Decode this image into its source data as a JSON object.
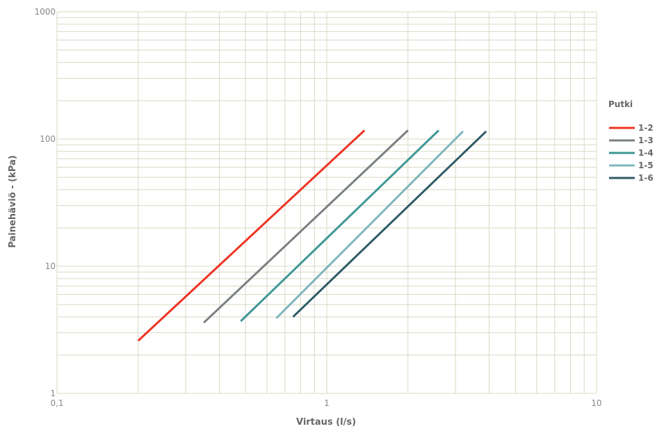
{
  "chart_data": {
    "type": "line",
    "title": "",
    "xlabel": "Virtaus (l/s)",
    "ylabel": "Painehäviö  - (kPa)",
    "x_scale": "log",
    "y_scale": "log",
    "xlim": [
      0.1,
      10
    ],
    "ylim": [
      1,
      1000
    ],
    "x_tick_labels": [
      "0,1",
      "1",
      "10"
    ],
    "y_tick_labels": [
      "1",
      "10",
      "100",
      "1000"
    ],
    "grid": true,
    "grid_color": "#d8d8c4",
    "legend": {
      "title": "Putki",
      "position": "right"
    },
    "series": [
      {
        "name": "1-2",
        "color": "#ee3322",
        "points": [
          [
            0.2,
            2.6
          ],
          [
            1.38,
            117
          ]
        ]
      },
      {
        "name": "1-3",
        "color": "#7a7f80",
        "points": [
          [
            0.35,
            3.6
          ],
          [
            2.0,
            117
          ]
        ]
      },
      {
        "name": "1-4",
        "color": "#3f9795",
        "points": [
          [
            0.48,
            3.7
          ],
          [
            2.6,
            117
          ]
        ]
      },
      {
        "name": "1-5",
        "color": "#7fb6bc",
        "points": [
          [
            0.65,
            3.9
          ],
          [
            3.2,
            115
          ]
        ]
      },
      {
        "name": "1-6",
        "color": "#2f5a66",
        "points": [
          [
            0.75,
            4.0
          ],
          [
            3.9,
            115
          ]
        ]
      }
    ]
  }
}
